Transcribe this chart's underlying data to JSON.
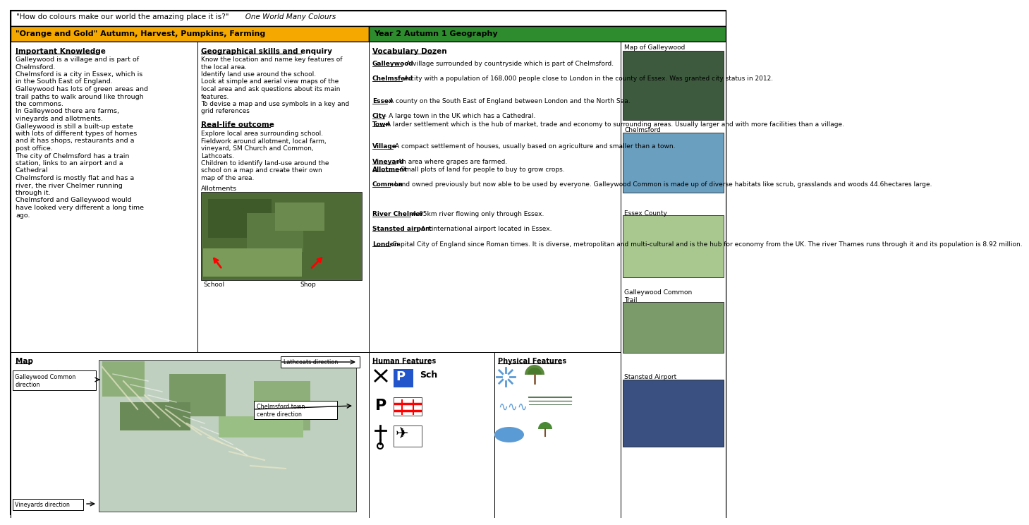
{
  "title_line1": "\"How do colours make our world the amazing place it is?\"",
  "title_line2": "   One World Many Colours",
  "subtitle_left": "\"Orange and Gold\" Autumn, Harvest, Pumpkins, Farming",
  "subtitle_right": "Year 2 Autumn 1 Geography",
  "subtitle_left_color": "#F5A800",
  "subtitle_right_color": "#2E8B2E",
  "bg_color": "#FFFFFF",
  "important_knowledge_title": "Important Knowledge",
  "ik_lines": [
    "Galleywood is a village and is part of",
    "Chelmsford.",
    "Chelmsford is a city in Essex, which is",
    "in the South East of England.",
    "Galleywood has lots of green areas and",
    "trail paths to walk around like through",
    "the commons.",
    "In Galleywood there are farms,",
    "vineyards and allotments.",
    "Galleywood is still a built-up estate",
    "with lots of different types of homes",
    "and it has shops, restaurants and a",
    "post office.",
    "The city of Chelmsford has a train",
    "station, links to an airport and a",
    "Cathedral",
    "Chelmsford is mostly flat and has a",
    "river, the river Chelmer running",
    "through it.",
    "Chelmsford and Galleywood would",
    "have looked very different a long time",
    "ago."
  ],
  "geo_skills_title": "Geographical skills and enquiry",
  "geo_lines": [
    "Know the location and name key features of",
    "the local area.",
    "Identify land use around the school.",
    "Look at simple and aerial view maps of the",
    "local area and ask questions about its main",
    "features.",
    "To devise a map and use symbols in a key and",
    "grid references"
  ],
  "real_life_title": "Real-life outcome",
  "real_lines": [
    "Explore local area surrounding school.",
    "Fieldwork around allotment, local farm,",
    "vineyard, SM Church and Common,",
    "Lathcoats.",
    "Children to identify land-use around the",
    "school on a map and create their own",
    "map of the area."
  ],
  "allotments_label": "Allotments",
  "school_label": "School",
  "shop_label": "Shop",
  "vocab_title": "Vocabulary Dozen",
  "vocab_entries": [
    [
      "Galleywood",
      "- A village surrounded by countryside which is part of Chelmsford."
    ],
    [
      "Chelmsford",
      "-A city with a population of 168,000 people close to London in the county of Essex. Was granted city status in 2012."
    ],
    [
      "Essex",
      "-A county on the South East of England between London and the North Sea."
    ],
    [
      "City",
      "- A large town in the UK which has a Cathedral."
    ],
    [
      "Town",
      "-A larder settlement which is the hub of market, trade and economy to surrounding areas. Usually larger and with more facilities than a village."
    ],
    [
      "Village",
      "-A compact settlement of houses, usually based on agriculture and smaller than a town."
    ],
    [
      "Vineyard",
      "-An area where grapes are farmed."
    ],
    [
      "Allotment",
      "-Small plots of land for people to buy to grow crops."
    ],
    [
      "Common",
      "- Land owned previously but now able to be used by everyone. Galleywood Common is made up of diverse habitats like scrub, grasslands and woods 44.6hectares large."
    ],
    [
      "River Chelmer",
      "-A 65km river flowing only through Essex."
    ],
    [
      "Stansted airport",
      "-An international airport located in Essex."
    ],
    [
      "London",
      "-Capital City of England since Roman times. It is diverse, metropolitan and multi-cultural and is the hub for economy from the UK. The river Thames runs through it and its population is 8.92 million."
    ]
  ],
  "map_title": "Map",
  "lathcoats_label": "Lathcoats direction",
  "chelmsford_label": "Chelmsford town\ncentre direction",
  "galleywood_label": "Galleywood Common\ndirection",
  "vineyards_label": "Vineyards direction",
  "human_title": "Human Features",
  "physical_title": "Physical Features",
  "right_labels": [
    "Map of Galleywood",
    "Chelmsford",
    "Essex County",
    "Galleywood Common\nTrail",
    "Stansted Airport"
  ],
  "right_colors": [
    "#3D5A3E",
    "#6B9FBF",
    "#A8C890",
    "#7B9B6B",
    "#3A5080"
  ]
}
